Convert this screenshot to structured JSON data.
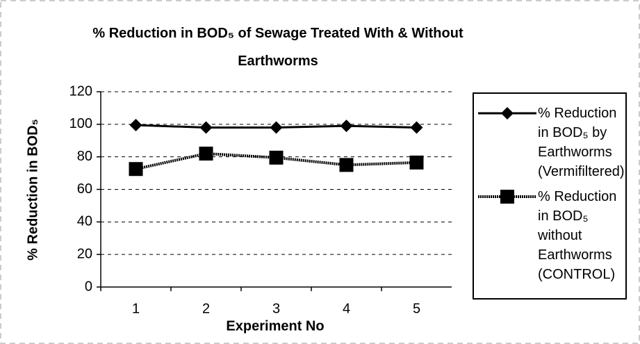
{
  "chart_data": {
    "type": "line",
    "title": "% Reduction in BOD₅ of Sewage Treated With & Without Earthworms",
    "xlabel": "Experiment No",
    "ylabel": "% Reduction in  BOD₅",
    "categories": [
      "1",
      "2",
      "3",
      "4",
      "5"
    ],
    "series": [
      {
        "name": "% Reduction in BOD₅ by Earthworms (Vermifiltered)",
        "color": "#000000",
        "marker": "diamond",
        "values": [
          99.5,
          98,
          98,
          99,
          98
        ]
      },
      {
        "name": "% Reduction in BOD₅ without Earthworms (CONTROL)",
        "color": "#000000",
        "marker": "square",
        "values": [
          72.5,
          82,
          79.5,
          75,
          76.5
        ]
      }
    ],
    "ylim": [
      0,
      120
    ],
    "yticks": [
      0,
      20,
      40,
      60,
      80,
      100,
      120
    ],
    "grid": true,
    "legend": "right"
  }
}
